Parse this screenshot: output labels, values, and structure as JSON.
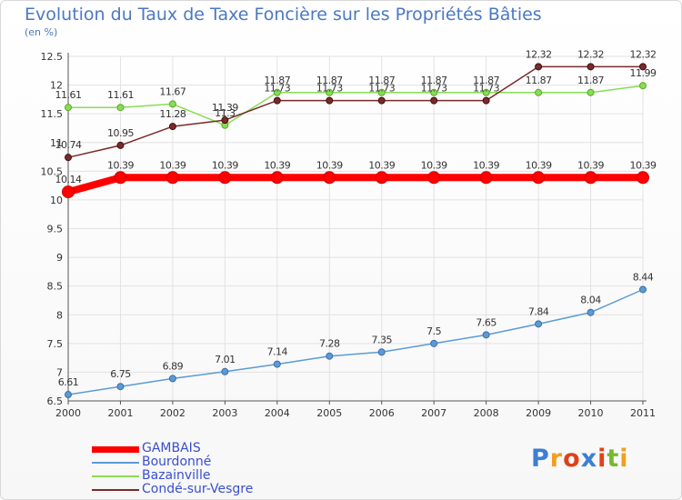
{
  "title": "Evolution du Taux de Taxe Foncière sur les Propriétés Bâties",
  "subtitle": "(en %)",
  "logo": "Proxiti",
  "chart_data": {
    "type": "line",
    "x": [
      "2000",
      "2001",
      "2002",
      "2003",
      "2004",
      "2005",
      "2006",
      "2007",
      "2008",
      "2009",
      "2010",
      "2011"
    ],
    "ylim": [
      6.5,
      12.5
    ],
    "yticks": [
      "6.5",
      "7",
      "7.5",
      "8",
      "8.5",
      "9",
      "9.5",
      "10",
      "10.5",
      "11",
      "11.5",
      "12",
      "12.5"
    ],
    "grid": true,
    "legend_position": "bottom-left",
    "series": [
      {
        "name": "GAMBAIS",
        "color": "#ff0000",
        "values": [
          10.14,
          10.39,
          10.39,
          10.39,
          10.39,
          10.39,
          10.39,
          10.39,
          10.39,
          10.39,
          10.39,
          10.39
        ],
        "labels": [
          "10.14",
          "10.39",
          "10.39",
          "10.39",
          "10.39",
          "10.39",
          "10.39",
          "10.39",
          "10.39",
          "10.39",
          "10.39",
          "10.39"
        ]
      },
      {
        "name": "Bourdonné",
        "color": "#5b9bd5",
        "values": [
          6.61,
          6.75,
          6.89,
          7.01,
          7.14,
          7.28,
          7.35,
          7.5,
          7.65,
          7.84,
          8.04,
          8.44
        ],
        "labels": [
          "6.61",
          "6.75",
          "6.89",
          "7.01",
          "7.14",
          "7.28",
          "7.35",
          "7.5",
          "7.65",
          "7.84",
          "8.04",
          "8.44"
        ]
      },
      {
        "name": "Bazainville",
        "color": "#88dd55",
        "values": [
          11.61,
          11.61,
          11.67,
          11.3,
          11.87,
          11.87,
          11.87,
          11.87,
          11.87,
          11.87,
          11.87,
          11.99
        ],
        "labels": [
          "11.61",
          "11.61",
          "11.67",
          "11.3",
          "11.87",
          "11.87",
          "11.87",
          "11.87",
          "11.87",
          "11.87",
          "11.87",
          "11.99"
        ]
      },
      {
        "name": "Condé-sur-Vesgre",
        "color": "#7a2a2a",
        "values": [
          10.74,
          10.95,
          11.28,
          11.39,
          11.73,
          11.73,
          11.73,
          11.73,
          11.73,
          12.32,
          12.32,
          12.32
        ],
        "labels": [
          "10.74",
          "10.95",
          "11.28",
          "11.39",
          "11.73",
          "11.73",
          "11.73",
          "11.73",
          "11.73",
          "12.32",
          "12.32",
          "12.32"
        ]
      }
    ]
  }
}
